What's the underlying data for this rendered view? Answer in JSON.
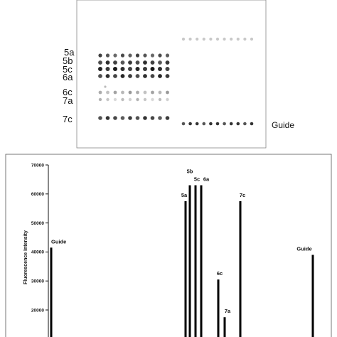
{
  "blot": {
    "row_labels": [
      "5a",
      "5b",
      "5c",
      "6a",
      "6c",
      "7a",
      "7c"
    ],
    "guide_label": "Guide"
  },
  "chart_data": {
    "type": "bar",
    "title": "",
    "xlabel": "",
    "ylabel": "Fluorescence Intensity",
    "ylim": [
      0,
      70000
    ],
    "yticks": [
      20000,
      30000,
      40000,
      50000,
      60000,
      70000
    ],
    "series": [
      {
        "values": [
          {
            "label": "Guide",
            "value": 41500
          },
          {
            "label": "5a",
            "value": 57500
          },
          {
            "label": "5b",
            "value": 63000
          },
          {
            "label": "5c",
            "value": 63000
          },
          {
            "label": "6a",
            "value": 63000
          },
          {
            "label": "6c",
            "value": 30500
          },
          {
            "label": "7a",
            "value": 17500
          },
          {
            "label": "7c",
            "value": 57500
          },
          {
            "label": "Guide",
            "value": 39000
          }
        ]
      }
    ]
  }
}
